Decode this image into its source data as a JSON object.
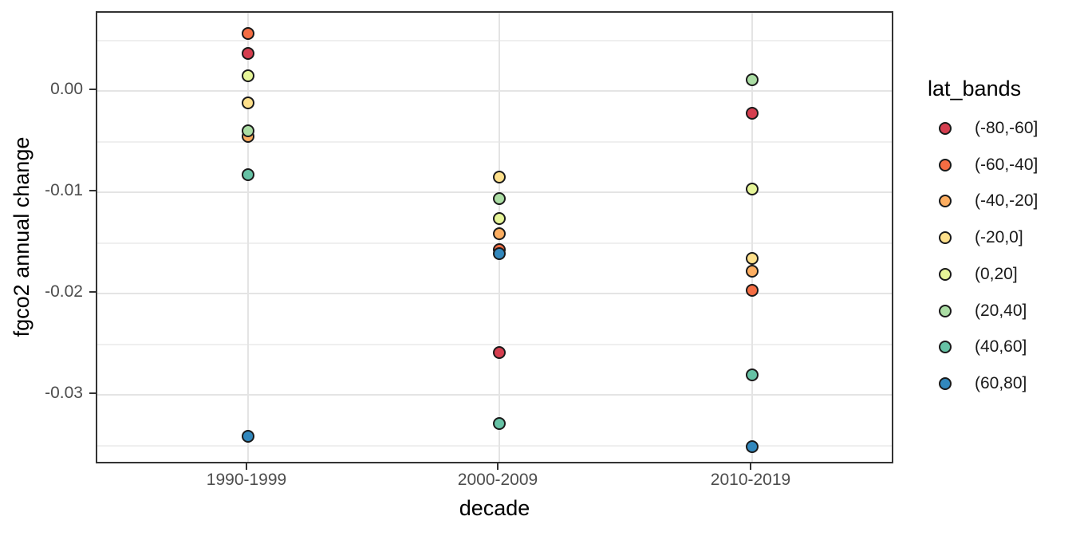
{
  "chart_data": {
    "type": "scatter",
    "title": "",
    "xlabel": "decade",
    "ylabel": "fgco2 annual change",
    "legend_title": "lat_bands",
    "legend_position": "right",
    "grid": true,
    "categories": [
      "1990-1999",
      "2000-2009",
      "2010-2019"
    ],
    "y_tick_labels": [
      "0.00",
      "-0.01",
      "-0.02",
      "-0.03"
    ],
    "y_major_ticks": [
      0,
      -0.01,
      -0.02,
      -0.03
    ],
    "y_minor_ticks": [
      0.005,
      -0.005,
      -0.015,
      -0.025,
      -0.035
    ],
    "ylim": [
      -0.0372,
      0.0077
    ],
    "point_outline_color": "#1A1A1A",
    "style": {
      "panel_background": "#FFFFFF",
      "grid_major_color": "#E4E4E4",
      "grid_minor_color": "#EFEFEF",
      "panel_border_color": "#333333",
      "tick_label_color": "#4D4D4D"
    },
    "series": [
      {
        "name": "(-80,-60]",
        "color": "#D53E4F",
        "values": [
          0.0037,
          -0.0258,
          -0.0022
        ]
      },
      {
        "name": "(-60,-40]",
        "color": "#F46D43",
        "values": [
          0.0057,
          -0.0157,
          -0.0197
        ]
      },
      {
        "name": "(-40,-20]",
        "color": "#FDAE61",
        "values": [
          -0.0045,
          -0.0141,
          -0.0178
        ]
      },
      {
        "name": "(-20,0]",
        "color": "#FEE08B",
        "values": [
          -0.0012,
          -0.0085,
          -0.0165
        ]
      },
      {
        "name": "(0,20]",
        "color": "#E6F598",
        "values": [
          0.0015,
          -0.0126,
          -0.0097
        ]
      },
      {
        "name": "(20,40]",
        "color": "#ABDDA4",
        "values": [
          -0.0039,
          -0.0106,
          0.0011
        ]
      },
      {
        "name": "(40,60]",
        "color": "#66C2A5",
        "values": [
          -0.0083,
          -0.0328,
          -0.028
        ]
      },
      {
        "name": "(60,80]",
        "color": "#3288BD",
        "values": [
          -0.0341,
          -0.0161,
          -0.0351
        ]
      }
    ]
  }
}
